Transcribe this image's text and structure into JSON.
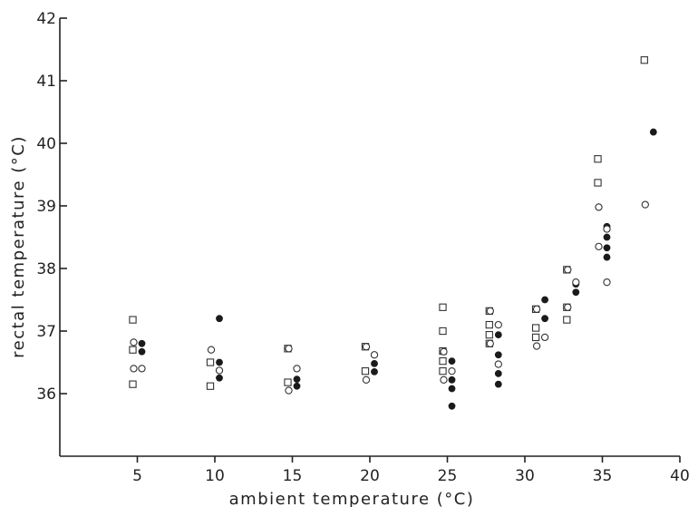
{
  "chart_data": {
    "type": "scatter",
    "title": "",
    "xlabel": "ambient temperature (°C)",
    "ylabel": "rectal temperature (°C)",
    "xlim": [
      0,
      40
    ],
    "ylim": [
      35,
      42
    ],
    "x_ticks": [
      5,
      10,
      15,
      20,
      25,
      30,
      35,
      40
    ],
    "y_ticks": [
      36,
      37,
      38,
      39,
      40,
      41,
      42
    ],
    "grid": false,
    "legend": "none",
    "series": [
      {
        "marker": "open-square",
        "points": [
          [
            5,
            37.18
          ],
          [
            5,
            36.7
          ],
          [
            5,
            36.15
          ],
          [
            10,
            36.5
          ],
          [
            10,
            36.12
          ],
          [
            15,
            36.72
          ],
          [
            15,
            36.18
          ],
          [
            20,
            36.75
          ],
          [
            20,
            36.36
          ],
          [
            25,
            37.38
          ],
          [
            25,
            37.0
          ],
          [
            25,
            36.68
          ],
          [
            25,
            36.52
          ],
          [
            25,
            36.36
          ],
          [
            28,
            37.32
          ],
          [
            28,
            37.1
          ],
          [
            28,
            36.94
          ],
          [
            28,
            36.8
          ],
          [
            31,
            37.35
          ],
          [
            31,
            37.05
          ],
          [
            31,
            36.9
          ],
          [
            33,
            37.98
          ],
          [
            33,
            37.38
          ],
          [
            33,
            37.18
          ],
          [
            35,
            39.75
          ],
          [
            35,
            39.37
          ],
          [
            38,
            41.33
          ]
        ]
      },
      {
        "marker": "filled-circle",
        "points": [
          [
            5,
            36.8
          ],
          [
            5,
            36.67
          ],
          [
            10,
            37.2
          ],
          [
            10,
            36.5
          ],
          [
            10,
            36.37
          ],
          [
            10,
            36.25
          ],
          [
            15,
            36.23
          ],
          [
            15,
            36.12
          ],
          [
            20,
            36.62
          ],
          [
            20,
            36.48
          ],
          [
            20,
            36.35
          ],
          [
            25,
            36.52
          ],
          [
            25,
            36.22
          ],
          [
            25,
            36.08
          ],
          [
            25,
            35.8
          ],
          [
            28,
            36.94
          ],
          [
            28,
            36.62
          ],
          [
            28,
            36.32
          ],
          [
            28,
            36.15
          ],
          [
            31,
            37.5
          ],
          [
            31,
            37.2
          ],
          [
            33,
            37.75
          ],
          [
            33,
            37.62
          ],
          [
            35,
            38.67
          ],
          [
            35,
            38.5
          ],
          [
            35,
            38.33
          ],
          [
            35,
            38.18
          ],
          [
            38,
            40.18
          ]
        ]
      },
      {
        "marker": "open-circle",
        "points": [
          [
            5,
            36.82
          ],
          [
            5,
            36.4
          ],
          [
            5,
            36.4
          ],
          [
            10,
            36.7
          ],
          [
            10,
            36.37
          ],
          [
            15,
            36.72
          ],
          [
            15,
            36.4
          ],
          [
            15,
            36.05
          ],
          [
            20,
            36.75
          ],
          [
            20,
            36.62
          ],
          [
            20,
            36.22
          ],
          [
            25,
            36.67
          ],
          [
            25,
            36.36
          ],
          [
            25,
            36.22
          ],
          [
            28,
            37.32
          ],
          [
            28,
            37.1
          ],
          [
            28,
            36.8
          ],
          [
            28,
            36.47
          ],
          [
            31,
            37.35
          ],
          [
            31,
            36.9
          ],
          [
            31,
            36.76
          ],
          [
            33,
            37.98
          ],
          [
            33,
            37.78
          ],
          [
            33,
            37.38
          ],
          [
            35,
            38.98
          ],
          [
            35,
            38.63
          ],
          [
            35,
            38.35
          ],
          [
            35,
            37.78
          ],
          [
            38,
            39.02
          ]
        ]
      }
    ]
  }
}
